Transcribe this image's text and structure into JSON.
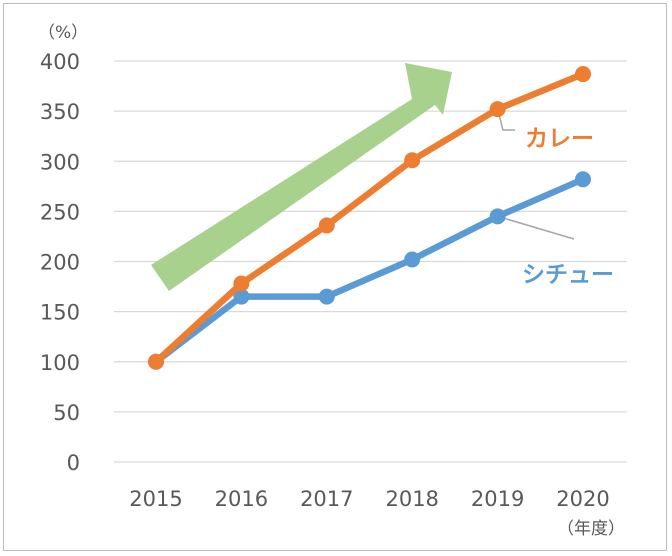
{
  "chart_data": {
    "type": "line",
    "x": [
      "2015",
      "2016",
      "2017",
      "2018",
      "2019",
      "2020"
    ],
    "series": [
      {
        "name": "カレー",
        "color": "#ed7d31",
        "values": [
          100,
          178,
          236,
          301,
          352,
          387
        ]
      },
      {
        "name": "シチュー",
        "color": "#5b9bd5",
        "values": [
          100,
          165,
          165,
          202,
          245,
          282
        ]
      }
    ],
    "y_ticks": [
      "0",
      "50",
      "100",
      "150",
      "200",
      "250",
      "300",
      "350",
      "400"
    ],
    "ylim": [
      0,
      400
    ],
    "y_unit": "（%）",
    "x_unit": "（年度）",
    "grid": true,
    "trend_arrow_color": "#a9d18e"
  }
}
